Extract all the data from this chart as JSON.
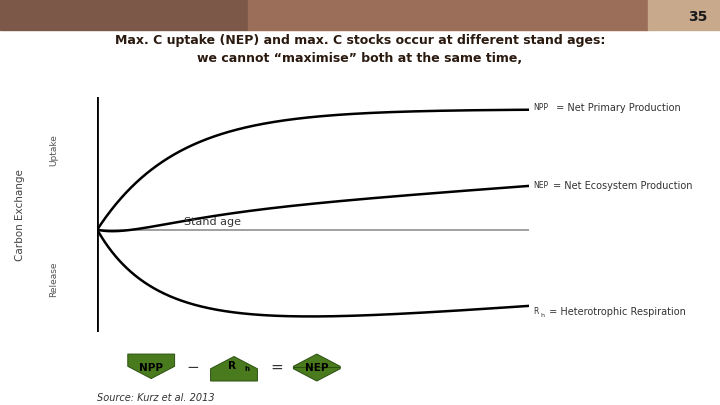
{
  "title_line1": "Max. C uptake (NEP) and max. C stocks occur at different stand ages:",
  "title_line2": "we cannot “maximise” both at the same time,",
  "slide_number": "35",
  "header_colors": [
    "#7B5848",
    "#9B6E5A",
    "#C8A98C"
  ],
  "bg_color": "#FFFFFF",
  "title_color": "#2B1A10",
  "npp_label_small": "NPP",
  "npp_label_rest": " = Net Primary Production",
  "nep_label_small": "NEP",
  "nep_label_rest": "= Net Ecosystem Production",
  "rh_label_small": "R",
  "rh_sub": "h",
  "rh_label_rest": " = Heterotrophic Respiration",
  "stand_age_label": "Stand age",
  "source_label": "Source: Kurz et al. 2013",
  "ylabel_outer": "Carbon Exchange",
  "ylabel_top": "Uptake",
  "ylabel_bot": "Release",
  "curve_color": "#000000",
  "zero_line_color": "#999999",
  "axis_color": "#000000",
  "arrow_color": "#4A7A1E",
  "arrow_edge_color": "#2A5010"
}
